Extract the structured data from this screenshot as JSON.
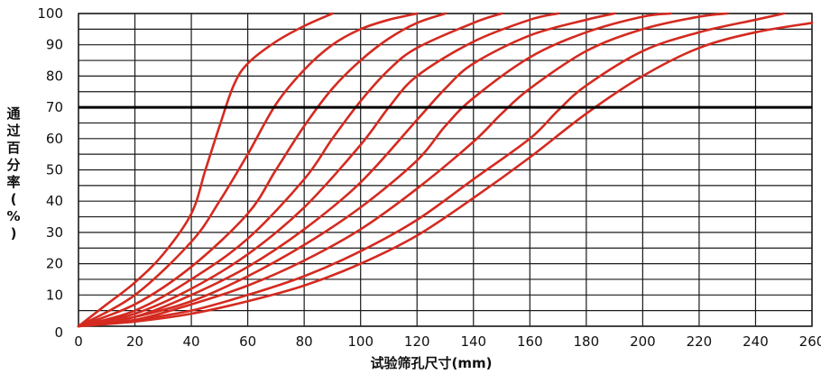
{
  "chart_data": {
    "type": "line",
    "title": "",
    "xlabel": "试验筛孔尺寸(mm)",
    "ylabel": "通过百分率(%)",
    "xlim": [
      0,
      260
    ],
    "ylim": [
      0,
      100
    ],
    "x_ticks": [
      "0",
      "20",
      "40",
      "60",
      "80",
      "100",
      "120",
      "140",
      "160",
      "180",
      "200",
      "220",
      "240",
      "260"
    ],
    "y_ticks": [
      "0",
      "10",
      "20",
      "30",
      "40",
      "50",
      "60",
      "70",
      "80",
      "90",
      "100"
    ],
    "grid": true,
    "reference_line": {
      "y": 70
    },
    "line_color": "#d42a20",
    "series": [
      {
        "values": [
          [
            0,
            0
          ],
          [
            10,
            7
          ],
          [
            20,
            14
          ],
          [
            30,
            23
          ],
          [
            40,
            36
          ],
          [
            45,
            50
          ],
          [
            50,
            64
          ],
          [
            55,
            77
          ],
          [
            60,
            84
          ],
          [
            70,
            91
          ],
          [
            80,
            96
          ],
          [
            90,
            100
          ]
        ]
      },
      {
        "values": [
          [
            0,
            0
          ],
          [
            20,
            10
          ],
          [
            40,
            27
          ],
          [
            50,
            40
          ],
          [
            60,
            55
          ],
          [
            70,
            71
          ],
          [
            80,
            82
          ],
          [
            90,
            90
          ],
          [
            100,
            95
          ],
          [
            110,
            98
          ],
          [
            120,
            100
          ]
        ]
      },
      {
        "values": [
          [
            0,
            0
          ],
          [
            20,
            7
          ],
          [
            40,
            19
          ],
          [
            60,
            36
          ],
          [
            70,
            50
          ],
          [
            80,
            64
          ],
          [
            90,
            76
          ],
          [
            100,
            85
          ],
          [
            110,
            92
          ],
          [
            120,
            97
          ],
          [
            130,
            100
          ]
        ]
      },
      {
        "values": [
          [
            0,
            0
          ],
          [
            20,
            5
          ],
          [
            40,
            15
          ],
          [
            60,
            28
          ],
          [
            80,
            47
          ],
          [
            90,
            60
          ],
          [
            100,
            72
          ],
          [
            110,
            82
          ],
          [
            120,
            89
          ],
          [
            140,
            97
          ],
          [
            150,
            100
          ]
        ]
      },
      {
        "values": [
          [
            0,
            0
          ],
          [
            20,
            4
          ],
          [
            40,
            12
          ],
          [
            60,
            23
          ],
          [
            80,
            38
          ],
          [
            100,
            58
          ],
          [
            110,
            70
          ],
          [
            120,
            80
          ],
          [
            140,
            91
          ],
          [
            160,
            98
          ],
          [
            170,
            100
          ]
        ]
      },
      {
        "values": [
          [
            0,
            0
          ],
          [
            20,
            3
          ],
          [
            40,
            10
          ],
          [
            60,
            19
          ],
          [
            80,
            31
          ],
          [
            100,
            46
          ],
          [
            120,
            66
          ],
          [
            130,
            76
          ],
          [
            140,
            84
          ],
          [
            160,
            93
          ],
          [
            180,
            98
          ],
          [
            190,
            100
          ]
        ]
      },
      {
        "values": [
          [
            0,
            0
          ],
          [
            20,
            3
          ],
          [
            40,
            8
          ],
          [
            60,
            16
          ],
          [
            80,
            26
          ],
          [
            100,
            38
          ],
          [
            120,
            53
          ],
          [
            130,
            64
          ],
          [
            140,
            73
          ],
          [
            160,
            86
          ],
          [
            180,
            94
          ],
          [
            200,
            99
          ],
          [
            210,
            100
          ]
        ]
      },
      {
        "values": [
          [
            0,
            0
          ],
          [
            20,
            2
          ],
          [
            40,
            7
          ],
          [
            60,
            13
          ],
          [
            80,
            21
          ],
          [
            100,
            31
          ],
          [
            120,
            44
          ],
          [
            140,
            59
          ],
          [
            150,
            68
          ],
          [
            160,
            76
          ],
          [
            180,
            88
          ],
          [
            200,
            95
          ],
          [
            220,
            99
          ],
          [
            230,
            100
          ]
        ]
      },
      {
        "values": [
          [
            0,
            0
          ],
          [
            20,
            2
          ],
          [
            40,
            5
          ],
          [
            60,
            10
          ],
          [
            80,
            16
          ],
          [
            100,
            24
          ],
          [
            120,
            34
          ],
          [
            140,
            47
          ],
          [
            160,
            60
          ],
          [
            170,
            69
          ],
          [
            180,
            77
          ],
          [
            200,
            88
          ],
          [
            220,
            94
          ],
          [
            240,
            98
          ],
          [
            250,
            100
          ]
        ]
      },
      {
        "values": [
          [
            0,
            0
          ],
          [
            20,
            1.5
          ],
          [
            40,
            4
          ],
          [
            60,
            8
          ],
          [
            80,
            13
          ],
          [
            100,
            20
          ],
          [
            120,
            29
          ],
          [
            140,
            41
          ],
          [
            160,
            54
          ],
          [
            180,
            68
          ],
          [
            200,
            80
          ],
          [
            220,
            89
          ],
          [
            240,
            94
          ],
          [
            260,
            97
          ]
        ]
      }
    ]
  }
}
